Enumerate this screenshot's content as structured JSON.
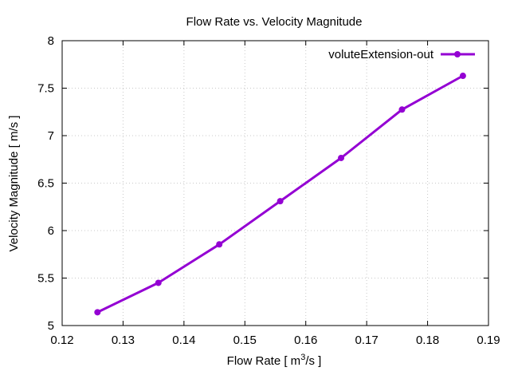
{
  "chart_data": {
    "type": "line",
    "title": "Flow Rate vs. Velocity Magnitude",
    "xlabel": "Flow Rate [ m3/s ]",
    "xlabel_parts": {
      "pre": "Flow Rate [ m",
      "sup": "3",
      "post": "/s ]"
    },
    "ylabel": "Velocity Magnitude [ m/s ]",
    "xlim": [
      0.12,
      0.19
    ],
    "ylim": [
      5,
      8
    ],
    "xticks": [
      0.12,
      0.13,
      0.14,
      0.15,
      0.16,
      0.17,
      0.18,
      0.19
    ],
    "xtick_labels": [
      "0.12",
      "0.13",
      "0.14",
      "0.15",
      "0.16",
      "0.17",
      "0.18",
      "0.19"
    ],
    "yticks": [
      5,
      5.5,
      6,
      6.5,
      7,
      7.5,
      8
    ],
    "ytick_labels": [
      "5",
      "5.5",
      "6",
      "6.5",
      "7",
      "7.5",
      "8"
    ],
    "grid": true,
    "legend_position": "top-right",
    "series": [
      {
        "name": "voluteExtension-out",
        "color": "#9400d3",
        "x": [
          0.1258,
          0.1358,
          0.1458,
          0.1558,
          0.1658,
          0.1758,
          0.1858
        ],
        "y": [
          5.14,
          5.45,
          5.855,
          6.31,
          6.765,
          7.275,
          7.63
        ]
      }
    ]
  }
}
